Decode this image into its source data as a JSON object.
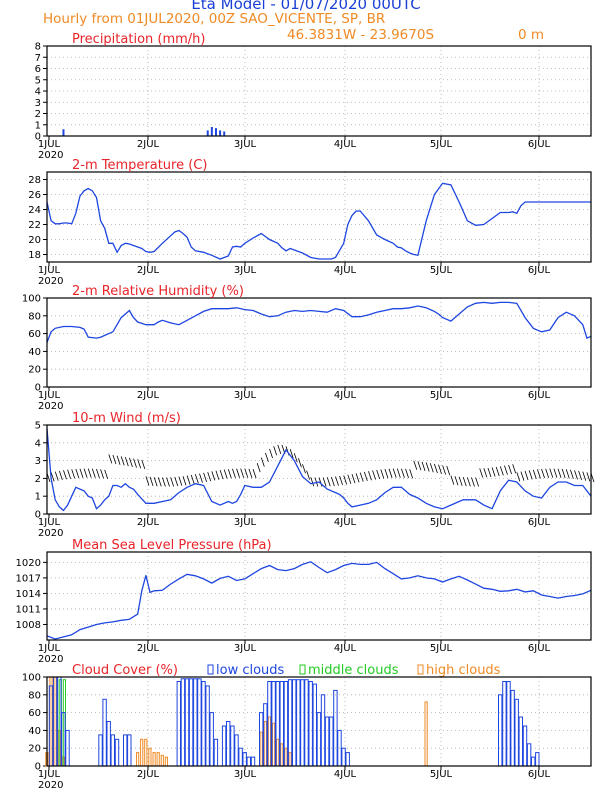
{
  "header": {
    "title": "Eta Model - 01/07/2020 00UTC",
    "subtitle": "Hourly from 01JUL2020, 00Z  SAO_VICENTE, SP, BR",
    "coords": "46.3831W - 23.9670S",
    "elevation": "0  m"
  },
  "colors": {
    "title": "#1a3fd6",
    "orange": "#f08a24",
    "red": "#e8242a",
    "blue": "#1e46e0",
    "green": "#22cc22",
    "black": "#000000",
    "grid": "#aaaaaa"
  },
  "chart_data": [
    {
      "type": "bar",
      "id": "precip",
      "title": "Precipitation (mm/h)",
      "ylim": [
        0,
        8
      ],
      "yticks": [
        0,
        1,
        2,
        3,
        4,
        5,
        6,
        7,
        8
      ],
      "xlim_hours": [
        0,
        132
      ],
      "x_tick_labels": [
        "1JUL",
        "2JUL",
        "3JUL",
        "4JUL",
        "5JUL",
        "6JUL"
      ],
      "year_label": "2020",
      "series": [
        {
          "name": "precipitation",
          "hours": [
            4,
            39,
            40,
            41,
            42,
            43
          ],
          "values": [
            0.6,
            0.5,
            0.8,
            0.7,
            0.5,
            0.4
          ]
        }
      ]
    },
    {
      "type": "line",
      "id": "temp",
      "title": "2-m Temperature (C)",
      "ylim": [
        17,
        29
      ],
      "yticks": [
        18,
        20,
        22,
        24,
        26,
        28
      ],
      "xlim_hours": [
        0,
        132
      ],
      "x_tick_labels": [
        "1JUL",
        "2JUL",
        "3JUL",
        "4JUL",
        "5JUL",
        "6JUL"
      ],
      "year_label": "2020",
      "x": [
        0,
        1,
        2,
        3,
        4,
        5,
        6,
        7,
        8,
        9,
        10,
        11,
        12,
        13,
        14,
        15,
        16,
        17,
        18,
        19,
        20,
        21,
        22,
        23,
        24,
        25,
        26,
        28,
        30,
        31,
        32,
        33,
        34,
        35,
        36,
        38,
        40,
        42,
        44,
        45,
        46,
        47,
        48,
        50,
        52,
        54,
        56,
        57,
        58,
        59,
        60,
        62,
        64,
        66,
        68,
        69,
        70,
        72,
        73,
        74,
        75,
        76,
        78,
        80,
        82,
        84,
        85,
        86,
        87,
        88,
        89,
        90,
        92,
        94,
        96,
        98,
        100,
        102,
        104,
        106,
        108,
        110,
        112,
        113,
        114,
        115,
        116,
        117,
        118,
        119,
        120,
        121,
        122,
        123,
        124,
        125,
        126,
        127,
        128,
        129,
        130,
        131,
        132
      ],
      "values": [
        25.0,
        22.5,
        22.1,
        22.1,
        22.2,
        22.2,
        22.1,
        23.5,
        25.8,
        26.5,
        26.8,
        26.5,
        25.6,
        22.5,
        21.5,
        19.5,
        19.5,
        18.3,
        19.2,
        19.5,
        19.4,
        19.2,
        19.0,
        18.8,
        18.4,
        18.3,
        18.4,
        19.5,
        20.5,
        21.0,
        21.2,
        20.8,
        20.3,
        19.0,
        18.5,
        18.3,
        17.9,
        17.4,
        17.8,
        19.0,
        19.1,
        19.0,
        19.5,
        20.2,
        20.8,
        20.0,
        19.5,
        18.9,
        18.5,
        18.8,
        18.6,
        18.2,
        17.6,
        17.4,
        17.4,
        17.4,
        17.6,
        19.5,
        22.0,
        23.2,
        23.8,
        23.8,
        22.5,
        20.6,
        20.0,
        19.5,
        19.0,
        18.9,
        18.5,
        18.2,
        18.0,
        17.9,
        22.5,
        26.0,
        27.5,
        27.3,
        25.0,
        22.5,
        21.9,
        22.0,
        22.8,
        23.6,
        23.6,
        23.7,
        23.5,
        24.5,
        25.0,
        25.0,
        25.0,
        25.0,
        25.0,
        25.0,
        25.0,
        25.0,
        25.0,
        25.0,
        25.0,
        25.0,
        25.0,
        25.0,
        25.0,
        25.0,
        25.0
      ]
    },
    {
      "type": "line",
      "id": "rh",
      "title": "2-m Relative Humidity (%)",
      "ylim": [
        0,
        100
      ],
      "yticks": [
        0,
        20,
        40,
        60,
        80,
        100
      ],
      "xlim_hours": [
        0,
        132
      ],
      "x_tick_labels": [
        "1JUL",
        "2JUL",
        "3JUL",
        "4JUL",
        "5JUL",
        "6JUL"
      ],
      "year_label": "2020",
      "x": [
        0,
        1,
        2,
        4,
        6,
        8,
        9,
        10,
        12,
        13,
        14,
        16,
        18,
        20,
        21,
        22,
        24,
        26,
        27,
        28,
        30,
        32,
        34,
        36,
        38,
        40,
        42,
        44,
        46,
        48,
        50,
        52,
        54,
        56,
        58,
        60,
        62,
        64,
        66,
        68,
        70,
        72,
        74,
        76,
        78,
        80,
        82,
        84,
        86,
        88,
        90,
        92,
        94,
        95,
        96,
        98,
        100,
        102,
        104,
        106,
        108,
        110,
        112,
        114,
        116,
        118,
        120,
        122,
        124,
        126,
        128,
        130,
        131,
        132
      ],
      "values": [
        50,
        62,
        66,
        68,
        68,
        67,
        65,
        56,
        55,
        56,
        58,
        62,
        78,
        86,
        78,
        73,
        70,
        70,
        73,
        75,
        72,
        70,
        75,
        80,
        85,
        88,
        88,
        88,
        89,
        87,
        86,
        82,
        79,
        80,
        84,
        86,
        85,
        86,
        85,
        84,
        88,
        86,
        79,
        79,
        81,
        84,
        86,
        88,
        88,
        89,
        91,
        89,
        85,
        82,
        78,
        74,
        82,
        90,
        94,
        95,
        94,
        95,
        95,
        94,
        78,
        66,
        62,
        64,
        78,
        84,
        80,
        70,
        55,
        57
      ]
    },
    {
      "type": "line",
      "id": "wind",
      "title": "10-m Wind (m/s)",
      "ylim": [
        0,
        5
      ],
      "yticks": [
        0,
        1,
        2,
        3,
        4,
        5
      ],
      "xlim_hours": [
        0,
        132
      ],
      "x_tick_labels": [
        "1JUL",
        "2JUL",
        "3JUL",
        "4JUL",
        "5JUL",
        "6JUL"
      ],
      "year_label": "2020",
      "x": [
        0,
        1,
        2,
        3,
        4,
        5,
        6,
        7,
        8,
        9,
        10,
        11,
        12,
        13,
        14,
        15,
        16,
        17,
        18,
        19,
        20,
        21,
        22,
        24,
        26,
        28,
        30,
        32,
        34,
        36,
        38,
        40,
        42,
        44,
        45,
        46,
        47,
        48,
        50,
        52,
        54,
        56,
        58,
        60,
        62,
        64,
        66,
        68,
        70,
        71,
        72,
        73,
        74,
        76,
        78,
        80,
        82,
        84,
        86,
        88,
        90,
        92,
        94,
        96,
        98,
        100,
        101,
        102,
        104,
        106,
        108,
        110,
        112,
        114,
        116,
        118,
        120,
        122,
        124,
        126,
        128,
        130,
        132
      ],
      "values": [
        4.8,
        2.0,
        0.8,
        0.4,
        0.2,
        0.5,
        1.0,
        1.5,
        1.4,
        1.3,
        1.0,
        0.9,
        0.3,
        0.5,
        0.8,
        1.0,
        1.6,
        1.6,
        1.5,
        1.7,
        1.5,
        1.4,
        1.1,
        0.6,
        0.6,
        0.7,
        0.8,
        1.2,
        1.5,
        1.7,
        1.6,
        0.7,
        0.5,
        0.7,
        0.6,
        0.7,
        1.1,
        1.6,
        1.5,
        1.5,
        1.8,
        2.7,
        3.6,
        3.0,
        2.1,
        1.7,
        1.8,
        1.4,
        1.2,
        1.1,
        0.9,
        0.6,
        0.4,
        0.5,
        0.6,
        0.8,
        1.2,
        1.5,
        1.5,
        1.1,
        0.9,
        0.6,
        0.4,
        0.3,
        0.5,
        0.7,
        0.8,
        0.8,
        0.8,
        0.5,
        0.3,
        1.3,
        1.9,
        1.8,
        1.3,
        1.0,
        0.9,
        1.5,
        1.8,
        1.8,
        1.6,
        1.6,
        1.0
      ]
    },
    {
      "type": "line",
      "id": "mslp",
      "title": "Mean Sea Level Pressure (hPa)",
      "ylim": [
        1005,
        1022
      ],
      "yticks": [
        1008,
        1011,
        1014,
        1017,
        1020
      ],
      "xlim_hours": [
        0,
        132
      ],
      "x_tick_labels": [
        "1JUL",
        "2JUL",
        "3JUL",
        "4JUL",
        "5JUL",
        "6JUL"
      ],
      "year_label": "2020",
      "x": [
        0,
        2,
        4,
        6,
        8,
        10,
        12,
        14,
        16,
        18,
        20,
        22,
        23,
        24,
        25,
        26,
        28,
        30,
        32,
        34,
        36,
        38,
        40,
        42,
        44,
        46,
        48,
        50,
        52,
        54,
        56,
        58,
        60,
        62,
        64,
        66,
        68,
        70,
        72,
        74,
        76,
        78,
        80,
        82,
        84,
        86,
        88,
        90,
        92,
        94,
        96,
        98,
        100,
        102,
        104,
        106,
        108,
        110,
        112,
        114,
        116,
        118,
        120,
        122,
        124,
        126,
        128,
        130,
        132
      ],
      "values": [
        1005.8,
        1005.2,
        1005.6,
        1006.0,
        1007.0,
        1007.5,
        1008.0,
        1008.3,
        1008.5,
        1008.8,
        1009.0,
        1010.0,
        1014.5,
        1017.5,
        1014.2,
        1014.5,
        1014.6,
        1015.8,
        1016.8,
        1017.7,
        1017.4,
        1016.8,
        1016.0,
        1016.9,
        1017.3,
        1016.5,
        1016.8,
        1017.8,
        1018.8,
        1019.4,
        1018.6,
        1018.4,
        1018.8,
        1019.6,
        1020.1,
        1019.0,
        1018.0,
        1018.6,
        1019.4,
        1019.8,
        1019.6,
        1019.6,
        1020.0,
        1018.8,
        1017.8,
        1016.8,
        1017.0,
        1017.4,
        1017.0,
        1016.8,
        1016.2,
        1016.8,
        1017.3,
        1016.6,
        1015.8,
        1015.0,
        1014.8,
        1014.4,
        1014.5,
        1014.8,
        1014.3,
        1014.5,
        1013.7,
        1013.4,
        1013.1,
        1013.4,
        1013.6,
        1013.9,
        1014.6
      ]
    },
    {
      "type": "bar",
      "id": "cloud",
      "title": "Cloud Cover (%)",
      "ylim": [
        0,
        100
      ],
      "yticks": [
        0,
        20,
        40,
        60,
        80,
        100
      ],
      "xlim_hours": [
        0,
        132
      ],
      "x_tick_labels": [
        "1JUL",
        "2JUL",
        "3JUL",
        "4JUL",
        "5JUL",
        "6JUL"
      ],
      "year_label": "2020",
      "legend": [
        "low clouds",
        "middle clouds",
        "high clouds"
      ],
      "series": [
        {
          "name": "low clouds",
          "hours": [
            1,
            2,
            3,
            4,
            5,
            13,
            14,
            15,
            16,
            17,
            19,
            20,
            32,
            33,
            34,
            35,
            36,
            37,
            38,
            39,
            40,
            41,
            43,
            44,
            45,
            46,
            47,
            48,
            49,
            50,
            52,
            53,
            54,
            55,
            56,
            57,
            58,
            59,
            60,
            61,
            62,
            63,
            64,
            65,
            66,
            67,
            68,
            69,
            70,
            71,
            72,
            73,
            110,
            111,
            112,
            113,
            114,
            115,
            116,
            117,
            118,
            119
          ],
          "values": [
            90,
            100,
            100,
            60,
            40,
            35,
            75,
            50,
            35,
            30,
            35,
            35,
            95,
            98,
            98,
            98,
            98,
            98,
            95,
            90,
            60,
            30,
            45,
            50,
            45,
            35,
            20,
            15,
            10,
            10,
            60,
            70,
            95,
            95,
            95,
            95,
            95,
            97,
            97,
            97,
            97,
            97,
            95,
            92,
            60,
            80,
            55,
            55,
            85,
            40,
            20,
            15,
            80,
            95,
            95,
            85,
            75,
            55,
            45,
            25,
            10,
            15
          ]
        },
        {
          "name": "middle clouds",
          "hours": [
            3,
            4
          ],
          "values": [
            97,
            97
          ]
        },
        {
          "name": "high clouds",
          "hours": [
            0,
            1,
            2,
            3,
            4,
            22,
            23,
            24,
            25,
            26,
            27,
            28,
            29,
            52,
            53,
            54,
            55,
            56,
            57,
            58,
            59,
            92
          ],
          "values": [
            15,
            100,
            100,
            40,
            10,
            15,
            30,
            30,
            20,
            15,
            15,
            12,
            10,
            38,
            50,
            55,
            48,
            30,
            25,
            20,
            15,
            72
          ]
        }
      ]
    }
  ]
}
